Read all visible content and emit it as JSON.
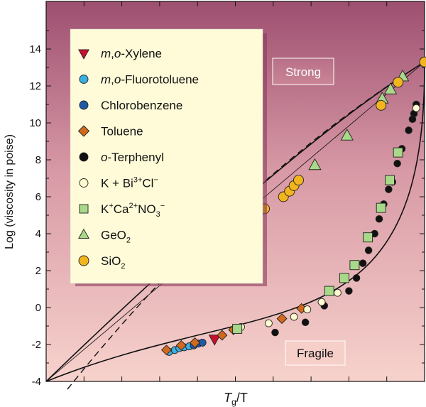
{
  "chart_data": {
    "type": "scatter",
    "ylabel": "Log (viscosity in poise)",
    "xlabel_main": "T",
    "xlabel_sub": "g",
    "xlabel_tail": "/T",
    "ylim": [
      -4,
      15
    ],
    "xlim": [
      0,
      1
    ],
    "y_ticks": [
      "-4",
      "-2",
      "0",
      "2",
      "4",
      "6",
      "8",
      "10",
      "12",
      "14"
    ],
    "y_tick_values": [
      -4,
      -2,
      0,
      2,
      4,
      6,
      8,
      10,
      12,
      14
    ],
    "grid": false,
    "legend_position": "top-left",
    "annotations": {
      "strong": "Strong",
      "fragile": "Fragile"
    },
    "series": [
      {
        "key": "mo_xylene",
        "name_parts": [
          [
            "m",
            "i"
          ],
          [
            ",",
            "n"
          ],
          [
            "o",
            "i"
          ],
          [
            "-Xylene",
            "n"
          ]
        ],
        "marker": "triangle-down",
        "color": "#c8102e",
        "points": [
          [
            0.445,
            -1.7
          ]
        ]
      },
      {
        "key": "mo_fluorotoluene",
        "name_parts": [
          [
            "m",
            "i"
          ],
          [
            ",",
            "n"
          ],
          [
            "o",
            "i"
          ],
          [
            "-Fluorotoluene",
            "n"
          ]
        ],
        "marker": "circle",
        "color": "#3ab0e0",
        "points": [
          [
            0.325,
            -2.4
          ],
          [
            0.34,
            -2.3
          ],
          [
            0.352,
            -2.2
          ],
          [
            0.365,
            -2.15
          ],
          [
            0.378,
            -2.1
          ]
        ]
      },
      {
        "key": "chlorobenzene",
        "name_parts": [
          [
            "Chlorobenzene",
            "n"
          ]
        ],
        "marker": "circle",
        "color": "#1f5aa6",
        "points": [
          [
            0.39,
            -2.05
          ],
          [
            0.402,
            -1.95
          ],
          [
            0.413,
            -1.9
          ]
        ]
      },
      {
        "key": "toluene",
        "name_parts": [
          [
            "Toluene",
            "n"
          ]
        ],
        "marker": "diamond",
        "color": "#d0691e",
        "points": [
          [
            0.318,
            -2.3
          ],
          [
            0.357,
            -2.05
          ],
          [
            0.393,
            -1.9
          ],
          [
            0.465,
            -1.5
          ],
          [
            0.495,
            -1.2
          ],
          [
            0.623,
            -0.6
          ],
          [
            0.675,
            -0.05
          ]
        ]
      },
      {
        "key": "o_terphenyl",
        "name_parts": [
          [
            "o",
            "i"
          ],
          [
            "-Terphenyl",
            "n"
          ]
        ],
        "marker": "circle",
        "color": "#111111",
        "points": [
          [
            0.605,
            -1.35
          ],
          [
            0.685,
            -0.8
          ],
          [
            0.735,
            0.1
          ],
          [
            0.8,
            0.9
          ],
          [
            0.82,
            1.6
          ],
          [
            0.837,
            2.4
          ],
          [
            0.852,
            3.1
          ],
          [
            0.868,
            4.0
          ],
          [
            0.88,
            4.8
          ],
          [
            0.892,
            5.6
          ],
          [
            0.905,
            6.4
          ],
          [
            0.915,
            6.8
          ],
          [
            0.928,
            7.8
          ],
          [
            0.94,
            8.6
          ],
          [
            0.958,
            9.6
          ],
          [
            0.968,
            10.2
          ],
          [
            0.972,
            10.5
          ],
          [
            0.978,
            11.0
          ]
        ]
      },
      {
        "key": "kbicl",
        "name_parts": [
          [
            "K + Bi",
            "n"
          ],
          [
            "3+",
            "sup"
          ],
          [
            "Cl",
            "n"
          ],
          [
            "−",
            "sup"
          ]
        ],
        "marker": "circle",
        "color": "#fffbd0",
        "points": [
          [
            0.515,
            -1.05
          ],
          [
            0.588,
            -0.85
          ],
          [
            0.655,
            -0.5
          ],
          [
            0.69,
            -0.1
          ],
          [
            0.728,
            0.3
          ],
          [
            0.77,
            0.8
          ],
          [
            0.978,
            10.8
          ]
        ]
      },
      {
        "key": "kcano3",
        "name_parts": [
          [
            "K",
            "n"
          ],
          [
            "+",
            "sup"
          ],
          [
            "Ca",
            "n"
          ],
          [
            "2+",
            "sup"
          ],
          [
            "NO",
            "n"
          ],
          [
            "3",
            "sub"
          ],
          [
            "−",
            "sup"
          ]
        ],
        "marker": "square",
        "color": "#a8d98a",
        "points": [
          [
            0.505,
            -1.15
          ],
          [
            0.748,
            0.9
          ],
          [
            0.788,
            1.6
          ],
          [
            0.815,
            2.3
          ],
          [
            0.85,
            3.8
          ],
          [
            0.885,
            5.4
          ],
          [
            0.908,
            6.9
          ],
          [
            0.93,
            8.4
          ]
        ]
      },
      {
        "key": "geo2",
        "name_parts": [
          [
            "GeO",
            "n"
          ],
          [
            "2",
            "sub"
          ]
        ],
        "marker": "triangle-up",
        "color": "#a8d98a",
        "points": [
          [
            0.71,
            7.7
          ],
          [
            0.795,
            9.3
          ],
          [
            0.888,
            11.3
          ],
          [
            0.91,
            11.8
          ],
          [
            0.942,
            12.5
          ]
        ]
      },
      {
        "key": "sio2",
        "name_parts": [
          [
            "SiO",
            "n"
          ],
          [
            "2",
            "sub"
          ]
        ],
        "marker": "circle",
        "color": "#f3b51e",
        "points": [
          [
            0.502,
            4.1
          ],
          [
            0.516,
            4.4
          ],
          [
            0.53,
            4.65
          ],
          [
            0.545,
            4.9
          ],
          [
            0.56,
            5.1
          ],
          [
            0.577,
            5.35
          ],
          [
            0.627,
            6.0
          ],
          [
            0.643,
            6.3
          ],
          [
            0.655,
            6.6
          ],
          [
            0.667,
            6.9
          ],
          [
            0.885,
            10.95
          ],
          [
            0.93,
            12.2
          ],
          [
            1.0,
            13.3
          ]
        ]
      }
    ]
  }
}
